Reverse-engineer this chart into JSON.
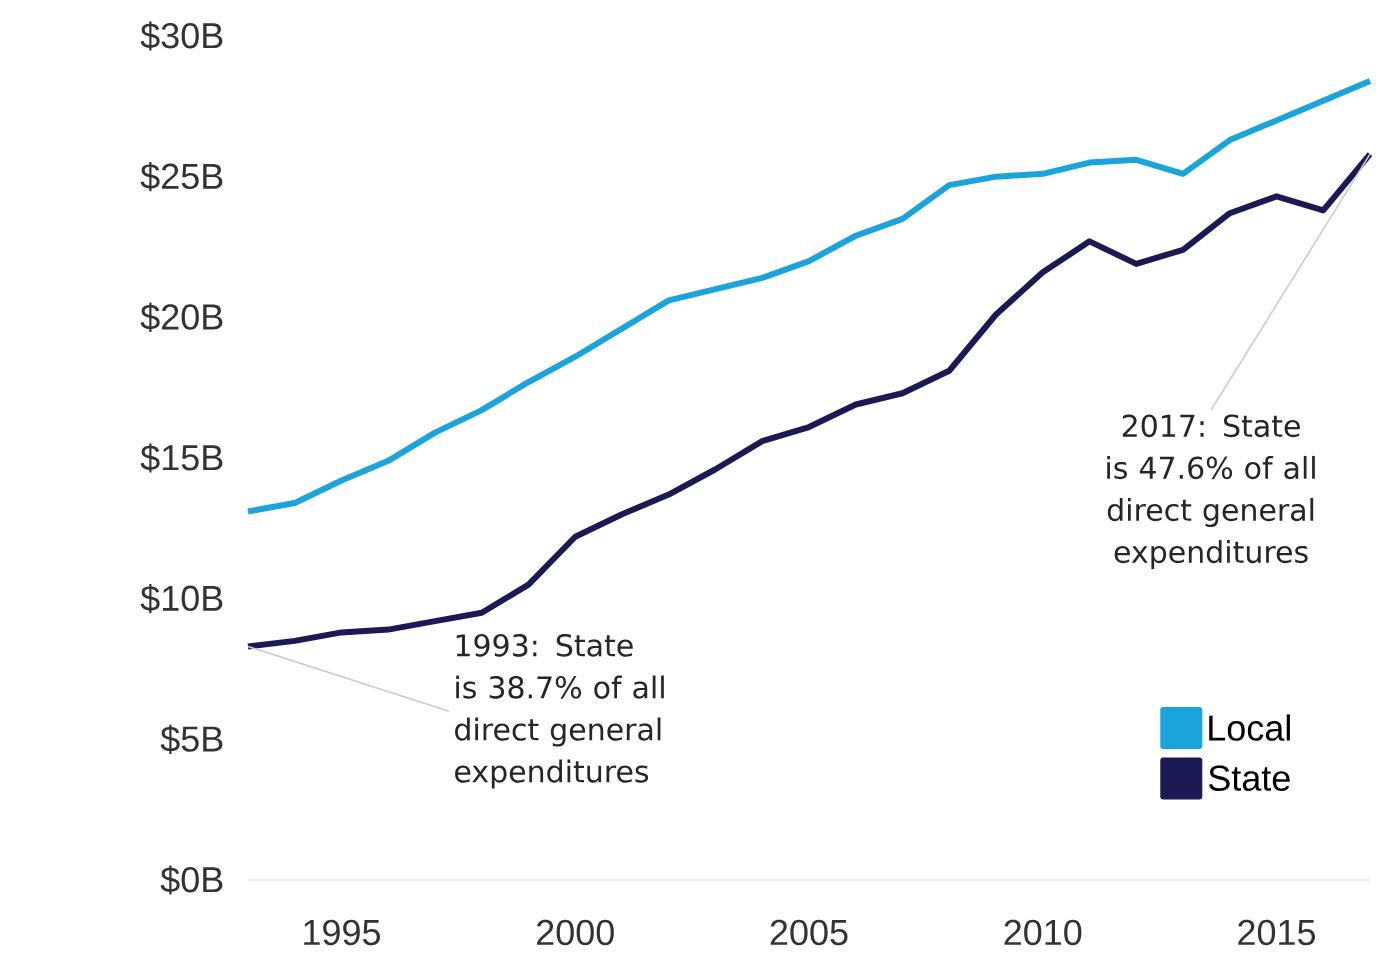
{
  "chart_data": {
    "type": "line",
    "xlim": [
      1993,
      2017
    ],
    "ylim": [
      0,
      30
    ],
    "xticks": [
      1995,
      2000,
      2005,
      2010,
      2015
    ],
    "yticks": [
      {
        "value": 0,
        "label": "$0B"
      },
      {
        "value": 5,
        "label": "$5B"
      },
      {
        "value": 10,
        "label": "$10B"
      },
      {
        "value": 15,
        "label": "$15B"
      },
      {
        "value": 20,
        "label": "$20B"
      },
      {
        "value": 25,
        "label": "$25B"
      },
      {
        "value": 30,
        "label": "$30B"
      }
    ],
    "x": [
      1993,
      1994,
      1995,
      1996,
      1997,
      1998,
      1999,
      2000,
      2001,
      2002,
      2003,
      2004,
      2005,
      2006,
      2007,
      2008,
      2009,
      2010,
      2011,
      2012,
      2013,
      2014,
      2015,
      2016,
      2017
    ],
    "series": [
      {
        "name": "Local",
        "color": "#1ba3dc",
        "values": [
          13.1,
          13.4,
          14.2,
          14.9,
          15.9,
          16.7,
          17.7,
          18.6,
          19.6,
          20.6,
          21.0,
          21.4,
          22.0,
          22.9,
          23.5,
          24.7,
          25.0,
          25.1,
          25.5,
          25.6,
          25.1,
          26.3,
          27.0,
          27.7,
          28.4
        ]
      },
      {
        "name": "State",
        "color": "#1c1a55",
        "values": [
          8.3,
          8.5,
          8.8,
          8.9,
          9.2,
          9.5,
          10.5,
          12.2,
          13.0,
          13.7,
          14.6,
          15.6,
          16.1,
          16.9,
          17.3,
          18.1,
          20.1,
          21.6,
          22.7,
          21.9,
          22.4,
          23.7,
          24.3,
          23.8,
          25.8
        ]
      }
    ],
    "annotations": [
      {
        "text": "1993: State is 38.7% of all direct general expenditures",
        "x": 1993,
        "y": 8.3
      },
      {
        "text": "2017: State is 47.6% of all direct general expenditures",
        "x": 2017,
        "y": 25.8
      }
    ],
    "legend": "bottom right",
    "marker": "none",
    "line_style": "solid"
  }
}
